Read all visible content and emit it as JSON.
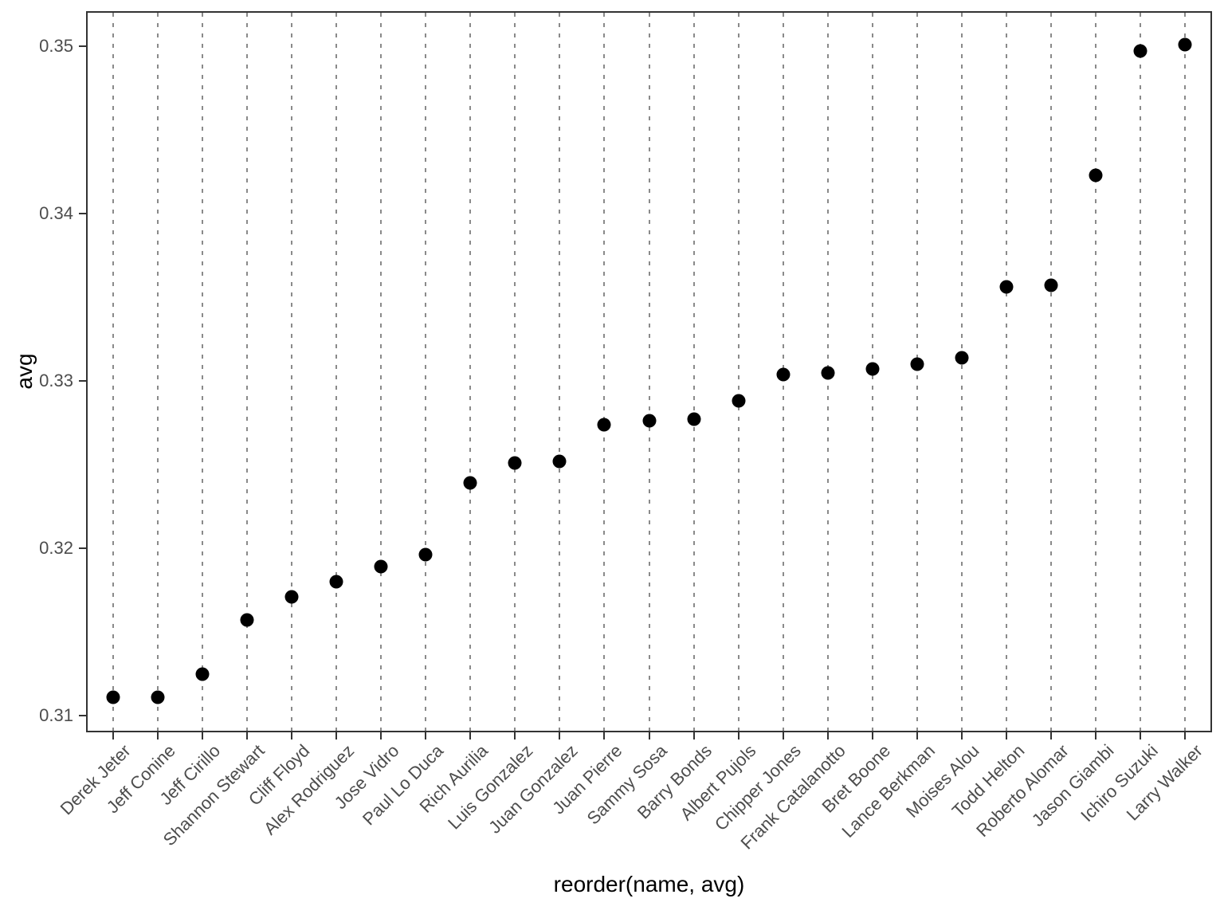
{
  "chart_data": {
    "type": "scatter",
    "title": "",
    "xlabel": "reorder(name, avg)",
    "ylabel": "avg",
    "categories": [
      "Derek Jeter",
      "Jeff Conine",
      "Jeff Cirillo",
      "Shannon Stewart",
      "Cliff Floyd",
      "Alex Rodriguez",
      "Jose Vidro",
      "Paul Lo Duca",
      "Rich Aurilia",
      "Luis Gonzalez",
      "Juan Gonzalez",
      "Juan Pierre",
      "Sammy Sosa",
      "Barry Bonds",
      "Albert Pujols",
      "Chipper Jones",
      "Frank Catalanotto",
      "Bret Boone",
      "Lance Berkman",
      "Moises Alou",
      "Todd Helton",
      "Roberto Alomar",
      "Jason Giambi",
      "Ichiro Suzuki",
      "Larry Walker"
    ],
    "values": [
      0.3111,
      0.3111,
      0.3125,
      0.3157,
      0.3171,
      0.318,
      0.3189,
      0.3196,
      0.3239,
      0.3251,
      0.3252,
      0.3274,
      0.3276,
      0.3277,
      0.3288,
      0.3304,
      0.3305,
      0.3307,
      0.331,
      0.3314,
      0.3356,
      0.3357,
      0.3423,
      0.3497,
      0.3501
    ],
    "yticks": [
      0.31,
      0.32,
      0.33,
      0.34,
      0.35
    ],
    "ytick_labels": [
      "0.31",
      "0.32",
      "0.33",
      "0.34",
      "0.35"
    ],
    "ylim": [
      0.309,
      0.3521
    ],
    "grid": "major-x-dashed-only",
    "legend_position": "none",
    "point_color": "#000000",
    "grid_color": "#8a8a8a",
    "axis_text_color": "#4d4d4d",
    "axis_title_color": "#000000",
    "panel_border_color": "#333333",
    "background_color": "#ffffff"
  }
}
